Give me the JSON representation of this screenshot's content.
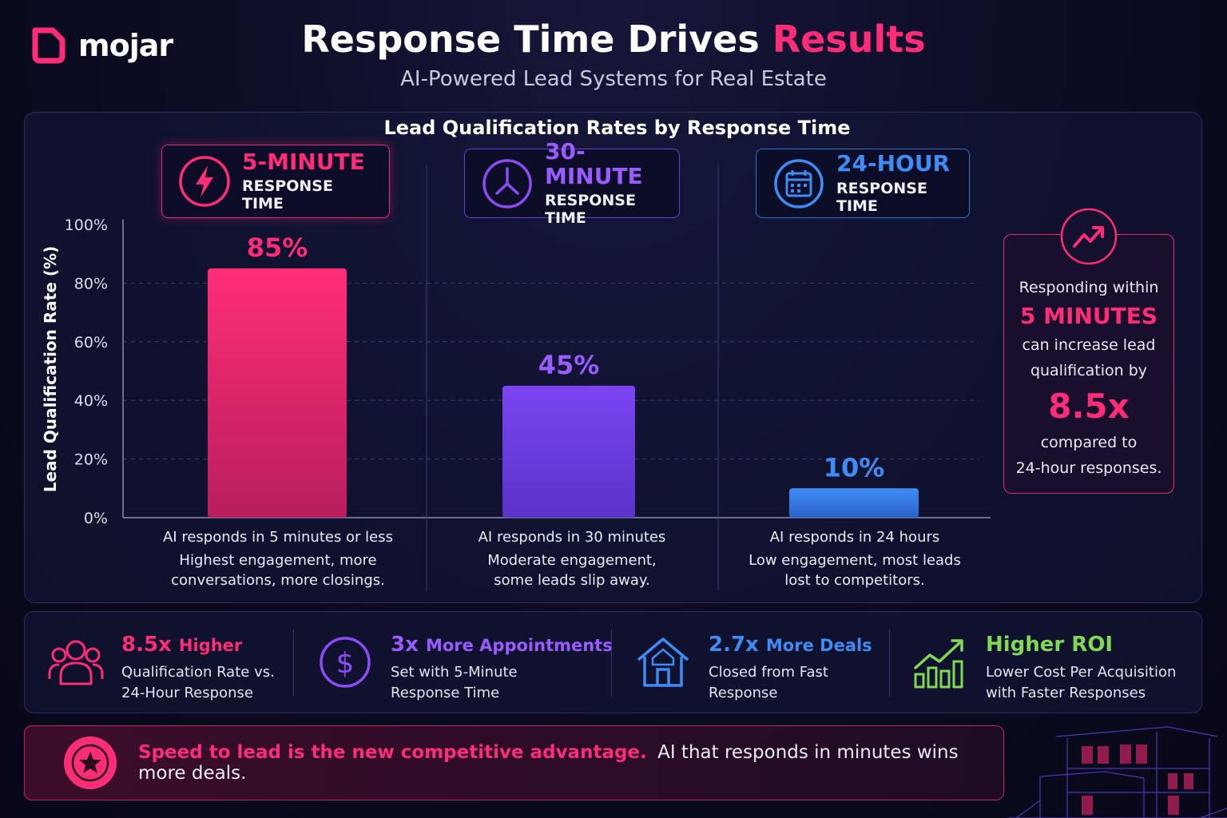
{
  "brand": {
    "name": "mojar"
  },
  "header": {
    "title_main": "Response Time Drives",
    "title_accent": "Results",
    "subtitle": "AI-Powered Lead Systems for Real Estate"
  },
  "colors": {
    "pink": "#ff2d78",
    "purple": "#8b4cf5",
    "blue": "#3f8cf5",
    "green": "#7ed957",
    "background": "#0b0b22"
  },
  "chart_data": {
    "type": "bar",
    "title": "Lead Qualification Rates by Response Time",
    "ylabel": "Lead Qualification Rate (%)",
    "xlabel": "",
    "ylim": [
      0,
      100
    ],
    "yticks": [
      0,
      20,
      40,
      60,
      80,
      100
    ],
    "ytick_labels": [
      "0%",
      "20%",
      "40%",
      "60%",
      "80%",
      "100%"
    ],
    "grid": true,
    "categories": [
      "5-MINUTE RESPONSE TIME",
      "30-MINUTE RESPONSE TIME",
      "24-HOUR RESPONSE TIME"
    ],
    "values": [
      85,
      45,
      10
    ],
    "value_labels": [
      "85%",
      "45%",
      "10%"
    ],
    "bar_colors": [
      "#ff2d78",
      "#8b4cf5",
      "#3f8cf5"
    ]
  },
  "categories": [
    {
      "head": "5-MINUTE",
      "sub": "RESPONSE TIME",
      "icon": "lightning-icon",
      "caption_1": "AI responds in 5 minutes or less",
      "caption_2": "Highest engagement, more",
      "caption_3": "conversations, more closings."
    },
    {
      "head": "30-MINUTE",
      "sub": "RESPONSE TIME",
      "icon": "clock-icon",
      "caption_1": "AI responds in 30 minutes",
      "caption_2": "Moderate engagement,",
      "caption_3": "some leads slip away."
    },
    {
      "head": "24-HOUR",
      "sub": "RESPONSE TIME",
      "icon": "calendar-icon",
      "caption_1": "AI responds in 24 hours",
      "caption_2": "Low engagement, most leads",
      "caption_3": "lost to competitors."
    }
  ],
  "callout": {
    "icon": "trend-up-icon",
    "line1": "Responding within",
    "emphasis1": "5 MINUTES",
    "line2": "can increase lead",
    "line3": "qualification by",
    "emphasis2": "8.5x",
    "line4": "compared to",
    "line5": "24-hour responses."
  },
  "stats": [
    {
      "icon": "people-icon",
      "value": "8.5x",
      "label": "Higher",
      "desc1": "Qualification Rate vs.",
      "desc2": "24-Hour Response"
    },
    {
      "icon": "dollar-icon",
      "value": "3x",
      "label": "More Appointments",
      "desc1": "Set with 5-Minute",
      "desc2": "Response Time"
    },
    {
      "icon": "house-icon",
      "value": "2.7x",
      "label": "More Deals",
      "desc1": "Closed from Fast",
      "desc2": "Response"
    },
    {
      "icon": "growth-chart-icon",
      "value": "Higher ROI",
      "label": "",
      "desc1": "Lower Cost Per Acquisition",
      "desc2": "with Faster Responses"
    }
  ],
  "banner": {
    "icon": "star-icon",
    "strong": "Speed to lead is the new competitive advantage.",
    "rest": "AI that responds in minutes wins more deals."
  }
}
